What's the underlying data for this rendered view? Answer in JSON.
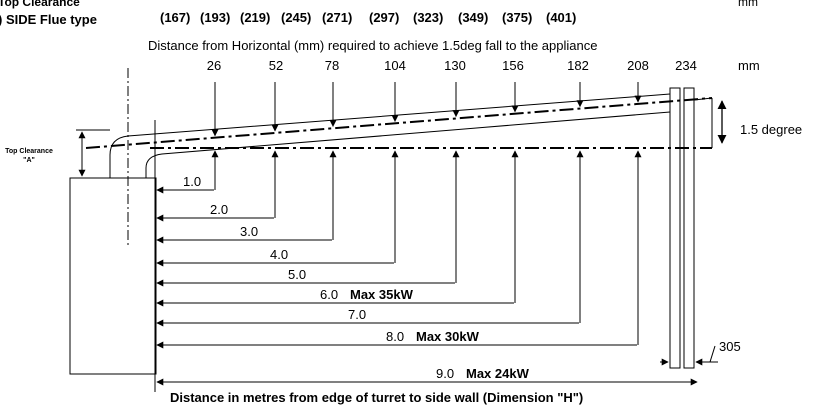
{
  "header": {
    "top_clearance_cut": "Top Clearance",
    "side_flue_type": ") SIDE Flue type",
    "mm_top": "mm",
    "bracket_values": [
      "(167)",
      "(193)",
      "(219)",
      "(245)",
      "(271)",
      "(297)",
      "(323)",
      "(349)",
      "(375)",
      "(401)"
    ]
  },
  "subtitle": "Distance from Horizontal (mm) required to achieve 1.5deg fall to the appliance",
  "fall_values": [
    "26",
    "52",
    "78",
    "104",
    "130",
    "156",
    "182",
    "208",
    "234"
  ],
  "mm_label": "mm",
  "angle_label": "1.5 degree",
  "top_clearance": {
    "line1": "Top Clearance",
    "line2": "\"A\""
  },
  "distances": [
    {
      "value": "1.0",
      "note": ""
    },
    {
      "value": "2.0",
      "note": ""
    },
    {
      "value": "3.0",
      "note": ""
    },
    {
      "value": "4.0",
      "note": ""
    },
    {
      "value": "5.0",
      "note": ""
    },
    {
      "value": "6.0",
      "note": "Max 35kW"
    },
    {
      "value": "7.0",
      "note": ""
    },
    {
      "value": "8.0",
      "note": "Max 30kW"
    },
    {
      "value": "9.0",
      "note": "Max 24kW"
    }
  ],
  "wall_dim": "305",
  "footer": "Distance in metres from edge of turret to side wall (Dimension \"H\")"
}
